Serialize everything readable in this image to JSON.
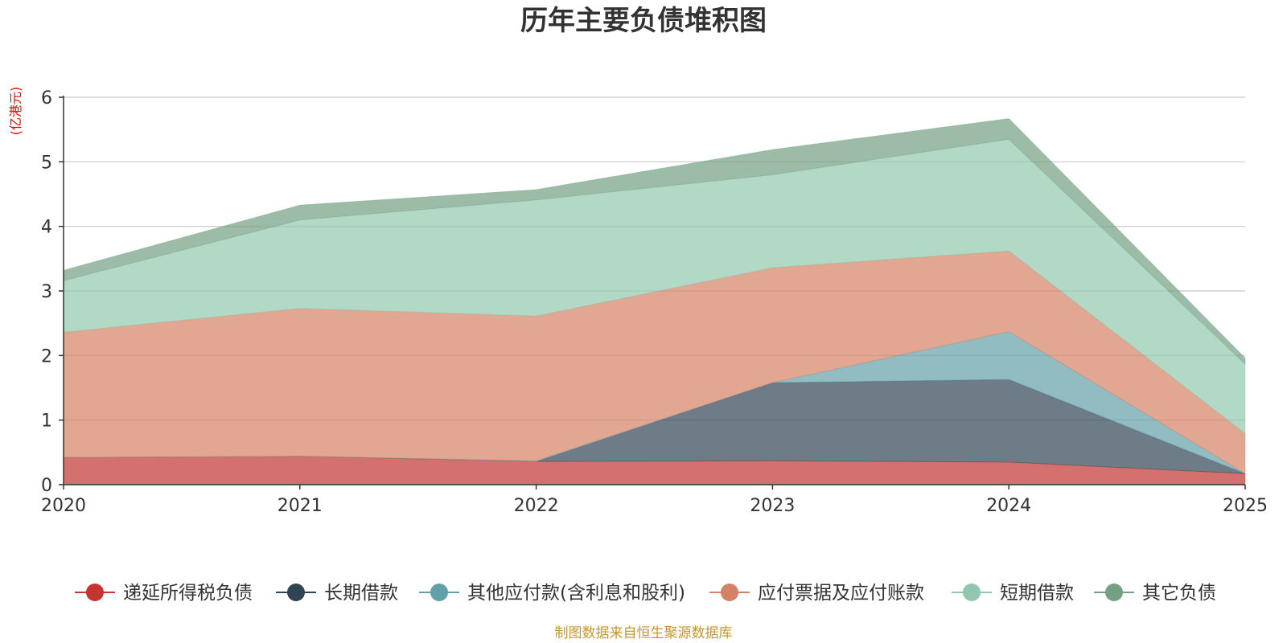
{
  "chart_data": {
    "type": "area",
    "stacked": true,
    "title": "历年主要负债堆积图",
    "ylabel": "(亿港元)",
    "xlabel": "",
    "categories": [
      "2020",
      "2021",
      "2022",
      "2023",
      "2024",
      "2025"
    ],
    "ylim": [
      0,
      6
    ],
    "yticks": [
      "0",
      "1",
      "2",
      "3",
      "4",
      "5",
      "6"
    ],
    "grid": true,
    "legend_position": "bottom",
    "series": [
      {
        "name": "递延所得税负债",
        "color": "#c23531",
        "values": [
          0.42,
          0.44,
          0.36,
          0.37,
          0.35,
          0.17
        ]
      },
      {
        "name": "长期借款",
        "color": "#2f4554",
        "values": [
          0.0,
          0.0,
          0.0,
          1.21,
          1.28,
          0.0
        ]
      },
      {
        "name": "其他应付款(含利息和股利)",
        "color": "#61a0a8",
        "values": [
          0.0,
          0.0,
          0.01,
          0.0,
          0.74,
          0.0
        ]
      },
      {
        "name": "应付票据及应付账款",
        "color": "#d48265",
        "values": [
          1.94,
          2.29,
          2.24,
          1.78,
          1.25,
          0.62
        ]
      },
      {
        "name": "短期借款",
        "color": "#91c7ae",
        "values": [
          0.8,
          1.37,
          1.8,
          1.44,
          1.73,
          1.08
        ]
      },
      {
        "name": "其它负债",
        "color": "#749f83",
        "values": [
          0.16,
          0.23,
          0.16,
          0.39,
          0.32,
          0.09
        ]
      }
    ],
    "source": "制图数据来自恒生聚源数据库"
  }
}
